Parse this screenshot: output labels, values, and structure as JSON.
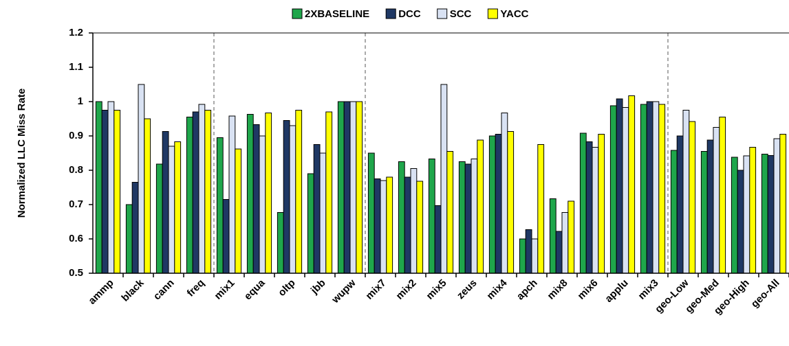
{
  "chart_data": {
    "type": "bar",
    "ylabel": "Normalized LLC Miss Rate",
    "categories": [
      "ammp",
      "black",
      "cann",
      "freq",
      "mix1",
      "equa",
      "oltp",
      "jbb",
      "wupw",
      "mix7",
      "mix2",
      "mix5",
      "zeus",
      "mix4",
      "apch",
      "mix8",
      "mix6",
      "applu",
      "mix3",
      "geo-Low",
      "geo-Med",
      "geo-High",
      "geo-All"
    ],
    "series": [
      {
        "name": "2XBASELINE",
        "color": "#1fa64b",
        "values": [
          1.0,
          0.7,
          0.818,
          0.955,
          0.895,
          0.963,
          0.677,
          0.79,
          1.0,
          0.85,
          0.825,
          0.833,
          0.825,
          0.9,
          0.6,
          0.717,
          0.908,
          0.988,
          0.992,
          0.858,
          0.855,
          0.838,
          0.847
        ]
      },
      {
        "name": "DCC",
        "color": "#1f3864",
        "values": [
          0.975,
          0.765,
          0.913,
          0.97,
          0.715,
          0.933,
          0.945,
          0.875,
          1.0,
          0.775,
          0.78,
          0.697,
          0.818,
          0.905,
          0.627,
          0.622,
          0.883,
          1.008,
          1.0,
          0.9,
          0.888,
          0.8,
          0.843
        ]
      },
      {
        "name": "SCC",
        "color": "#d9e2f3",
        "values": [
          1.0,
          1.05,
          0.87,
          0.992,
          0.958,
          0.9,
          0.93,
          0.85,
          1.0,
          0.77,
          0.805,
          1.05,
          0.833,
          0.967,
          0.6,
          0.677,
          0.867,
          0.983,
          1.0,
          0.975,
          0.925,
          0.842,
          0.892
        ]
      },
      {
        "name": "YACC",
        "color": "#ffff00",
        "values": [
          0.975,
          0.95,
          0.883,
          0.975,
          0.862,
          0.967,
          0.975,
          0.97,
          1.0,
          0.78,
          0.768,
          0.855,
          0.888,
          0.913,
          0.875,
          0.71,
          0.905,
          1.017,
          0.992,
          0.942,
          0.955,
          0.867,
          0.905
        ]
      }
    ],
    "ylim": [
      0.5,
      1.2
    ],
    "yticks": [
      0.5,
      0.6,
      0.7,
      0.8,
      0.9,
      1,
      1.1,
      1.2
    ],
    "legend": "top"
  }
}
